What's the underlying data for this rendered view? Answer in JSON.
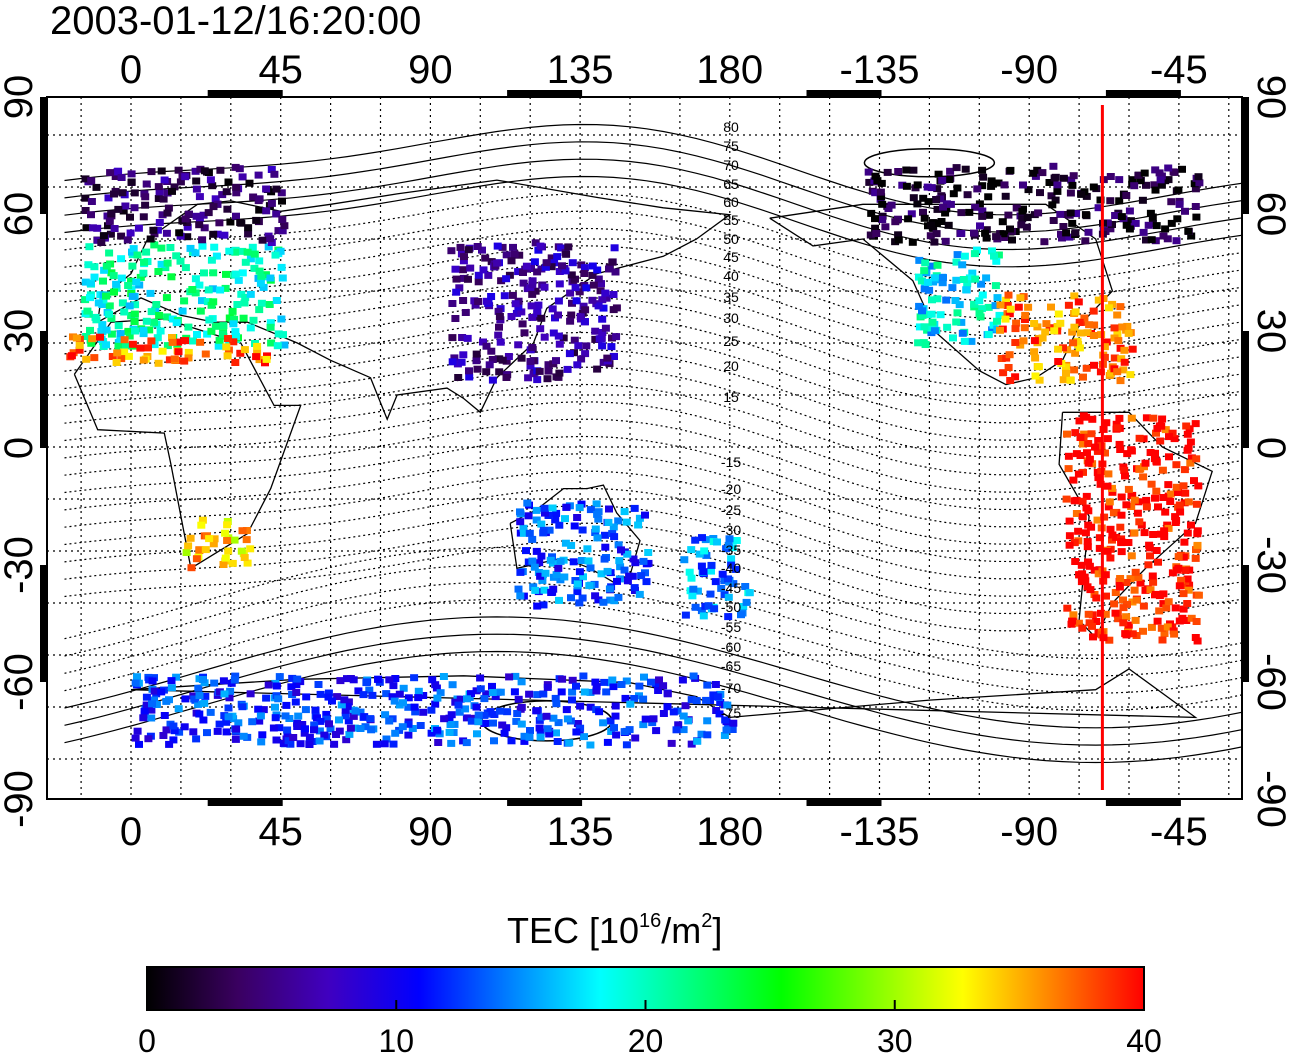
{
  "title": "2003-01-12/16:20:00",
  "map": {
    "top_ticks": [
      "0",
      "45",
      "90",
      "135",
      "180",
      "-135",
      "-90",
      "-45"
    ],
    "bottom_ticks": [
      "0",
      "45",
      "90",
      "135",
      "180",
      "-135",
      "-90",
      "-45"
    ],
    "left_ticks": [
      "90",
      "60",
      "30",
      "0",
      "-30",
      "-60",
      "-90"
    ],
    "right_ticks": [
      "90",
      "60",
      "30",
      "0",
      "-30",
      "-60",
      "-90"
    ],
    "contour_labels_north": [
      "80",
      "75",
      "70",
      "65",
      "60",
      "55",
      "50",
      "45",
      "40",
      "35",
      "30",
      "25",
      "20",
      "15"
    ],
    "contour_labels_south": [
      "-15",
      "-20",
      "-25",
      "-30",
      "-35",
      "-40",
      "-45",
      "-50",
      "-55",
      "-60",
      "-65",
      "-70",
      "-75"
    ],
    "marker_line_color": "#ff0000",
    "marker_line_longitude": -68
  },
  "colorbar": {
    "label_main": "TEC  [10",
    "label_sup": "16",
    "label_mid": "/m",
    "label_sup2": "2",
    "label_end": "]",
    "ticks": [
      "0",
      "10",
      "20",
      "30",
      "40"
    ],
    "range": [
      0,
      40
    ],
    "colormap": [
      "#000000",
      "#3a0060",
      "#4000c0",
      "#0000ff",
      "#0080ff",
      "#00ffff",
      "#00ff80",
      "#00ff00",
      "#80ff00",
      "#ffff00",
      "#ff8000",
      "#ff0000"
    ]
  },
  "chart_data": {
    "type": "heatmap",
    "title": "2003-01-12/16:20:00",
    "colorbar_label": "TEC [10^16/m^2]",
    "value_range": [
      0,
      40
    ],
    "x_range_degrees_east": [
      -20,
      345
    ],
    "y_range_degrees": [
      -90,
      90
    ],
    "regions": [
      {
        "lon": [
          -15,
          45
        ],
        "lat": [
          30,
          60
        ],
        "tec": 20
      },
      {
        "lon": [
          -15,
          45
        ],
        "lat": [
          60,
          82
        ],
        "tec": 4
      },
      {
        "lon": [
          -20,
          40
        ],
        "lat": [
          25,
          33
        ],
        "tec": 37
      },
      {
        "lon": [
          95,
          145
        ],
        "lat": [
          20,
          60
        ],
        "tec": 6
      },
      {
        "lon": [
          235,
          260
        ],
        "lat": [
          30,
          58
        ],
        "tec": 18
      },
      {
        "lon": [
          260,
          300
        ],
        "lat": [
          20,
          45
        ],
        "tec": 37
      },
      {
        "lon": [
          220,
          320
        ],
        "lat": [
          60,
          82
        ],
        "tec": 2
      },
      {
        "lon": [
          280,
          320
        ],
        "lat": [
          -55,
          10
        ],
        "tec": 40
      },
      {
        "lon": [
          15,
          35
        ],
        "lat": [
          -35,
          -20
        ],
        "tec": 34
      },
      {
        "lon": [
          115,
          155
        ],
        "lat": [
          -45,
          -15
        ],
        "tec": 13
      },
      {
        "lon": [
          165,
          185
        ],
        "lat": [
          -48,
          -25
        ],
        "tec": 15
      },
      {
        "lon": [
          0,
          180
        ],
        "lat": [
          -85,
          -65
        ],
        "tec": 12
      }
    ]
  }
}
